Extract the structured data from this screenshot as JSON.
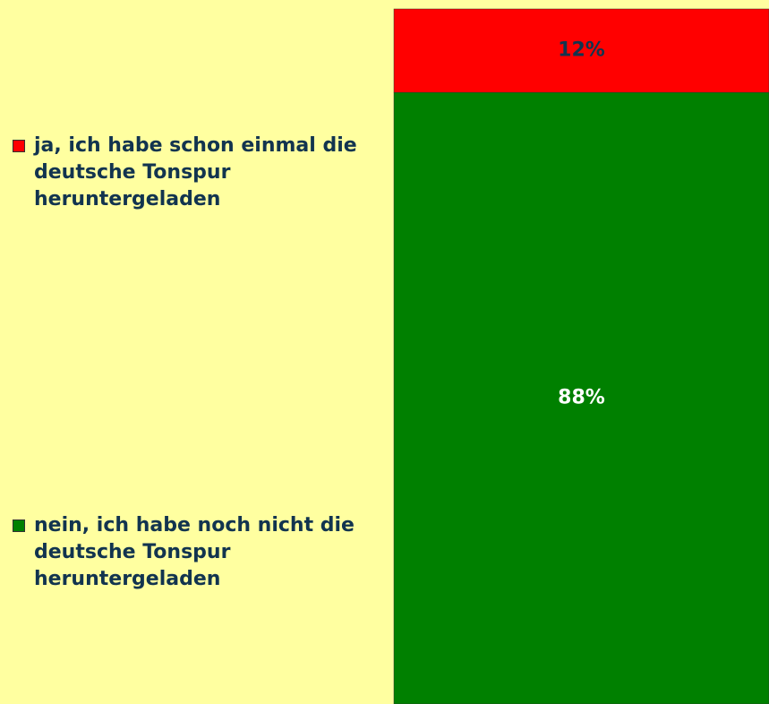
{
  "chart_data": {
    "type": "stacked-bar",
    "categories": [
      null
    ],
    "ylim": [
      0,
      100
    ],
    "series": [
      {
        "name": "ja, ich habe schon einmal die deutsche Tonspur heruntergeladen",
        "color": "#ff0000",
        "values": [
          12
        ],
        "value_labels": [
          "12%"
        ],
        "label_color": "#12344f"
      },
      {
        "name": "nein, ich habe noch nicht die deutsche Tonspur heruntergeladen",
        "color": "#008000",
        "values": [
          88
        ],
        "value_labels": [
          "88%"
        ],
        "label_color": "#ffffff"
      }
    ]
  }
}
